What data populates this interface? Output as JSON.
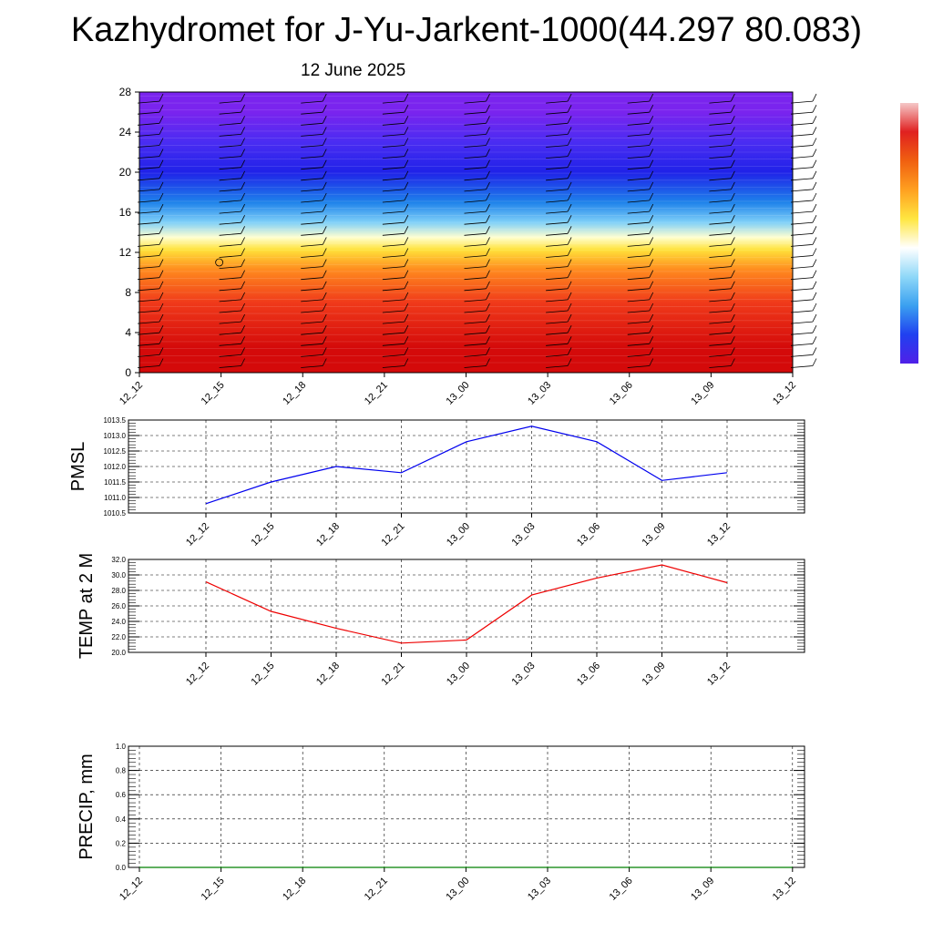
{
  "header": {
    "title": "Kazhydromet for J-Yu-Jarkent-1000(44.297 80.083)",
    "date": "12 June 2025"
  },
  "chart_data": [
    {
      "type": "heatmap",
      "description_key": "vertical cross-section with wind barbs",
      "x_ticks": [
        "12_12",
        "12_15",
        "12_18",
        "12_21",
        "13_00",
        "13_03",
        "13_06",
        "13_09",
        "13_12"
      ],
      "y_ticks": [
        0,
        4,
        8,
        12,
        16,
        20,
        24,
        28
      ],
      "ylim": [
        0,
        28
      ],
      "color_bands": [
        {
          "from": 0,
          "to": 5,
          "color": "#d40a0a"
        },
        {
          "from": 5,
          "to": 9,
          "color": "#f03a1a"
        },
        {
          "from": 9,
          "to": 11.5,
          "color": "#ff8a1e"
        },
        {
          "from": 11.5,
          "to": 13,
          "color": "#ffe23a"
        },
        {
          "from": 13,
          "to": 14,
          "color": "#ffffd0"
        },
        {
          "from": 14,
          "to": 16,
          "color": "#7fd0f8"
        },
        {
          "from": 16,
          "to": 18,
          "color": "#1e82ea"
        },
        {
          "from": 18,
          "to": 22,
          "color": "#1f22e8"
        },
        {
          "from": 22,
          "to": 24,
          "color": "#4a2cf2"
        },
        {
          "from": 24,
          "to": 28,
          "color": "#7a24ee"
        }
      ],
      "colorbar": [
        "#f5c8c8",
        "#e02020",
        "#f06010",
        "#ffa020",
        "#ffe640",
        "#ffffff",
        "#8fd8f8",
        "#3aa0f0",
        "#2040f0",
        "#5020e8"
      ]
    },
    {
      "type": "line",
      "ylabel": "PMSL",
      "x": [
        "12_12",
        "12_15",
        "12_18",
        "12_21",
        "13_00",
        "13_03",
        "13_06",
        "13_09",
        "13_12"
      ],
      "series": [
        {
          "values": [
            1010.8,
            1011.5,
            1012.0,
            1011.8,
            1012.8,
            1013.3,
            1012.8,
            1011.55,
            1011.8
          ],
          "color": "#0000ee"
        }
      ],
      "ylim": [
        1010.5,
        1013.5
      ],
      "y_ticks": [
        "1010.5",
        "1011.0",
        "1011.5",
        "1012.0",
        "1012.5",
        "1013.0",
        "1013.5"
      ]
    },
    {
      "type": "line",
      "ylabel": "TEMP at 2 M",
      "x": [
        "12_12",
        "12_15",
        "12_18",
        "12_21",
        "13_00",
        "13_03",
        "13_06",
        "13_09",
        "13_12"
      ],
      "series": [
        {
          "values": [
            29.1,
            25.3,
            23.1,
            21.2,
            21.6,
            27.4,
            29.6,
            31.3,
            29.0
          ],
          "color": "#ee0000"
        }
      ],
      "ylim": [
        20.0,
        32.0
      ],
      "y_ticks": [
        "20.0",
        "22.0",
        "24.0",
        "26.0",
        "28.0",
        "30.0",
        "32.0"
      ]
    },
    {
      "type": "line",
      "ylabel": "PRECIP, mm",
      "x": [
        "12_12",
        "12_15",
        "12_18",
        "12_21",
        "13_00",
        "13_03",
        "13_06",
        "13_09",
        "13_12"
      ],
      "series": [
        {
          "values": [
            0,
            0,
            0,
            0,
            0,
            0,
            0,
            0,
            0
          ],
          "color": "#008000"
        }
      ],
      "ylim": [
        0.0,
        1.0
      ],
      "y_ticks": [
        "0.0",
        "0.2",
        "0.4",
        "0.6",
        "0.8",
        "1.0"
      ]
    }
  ]
}
